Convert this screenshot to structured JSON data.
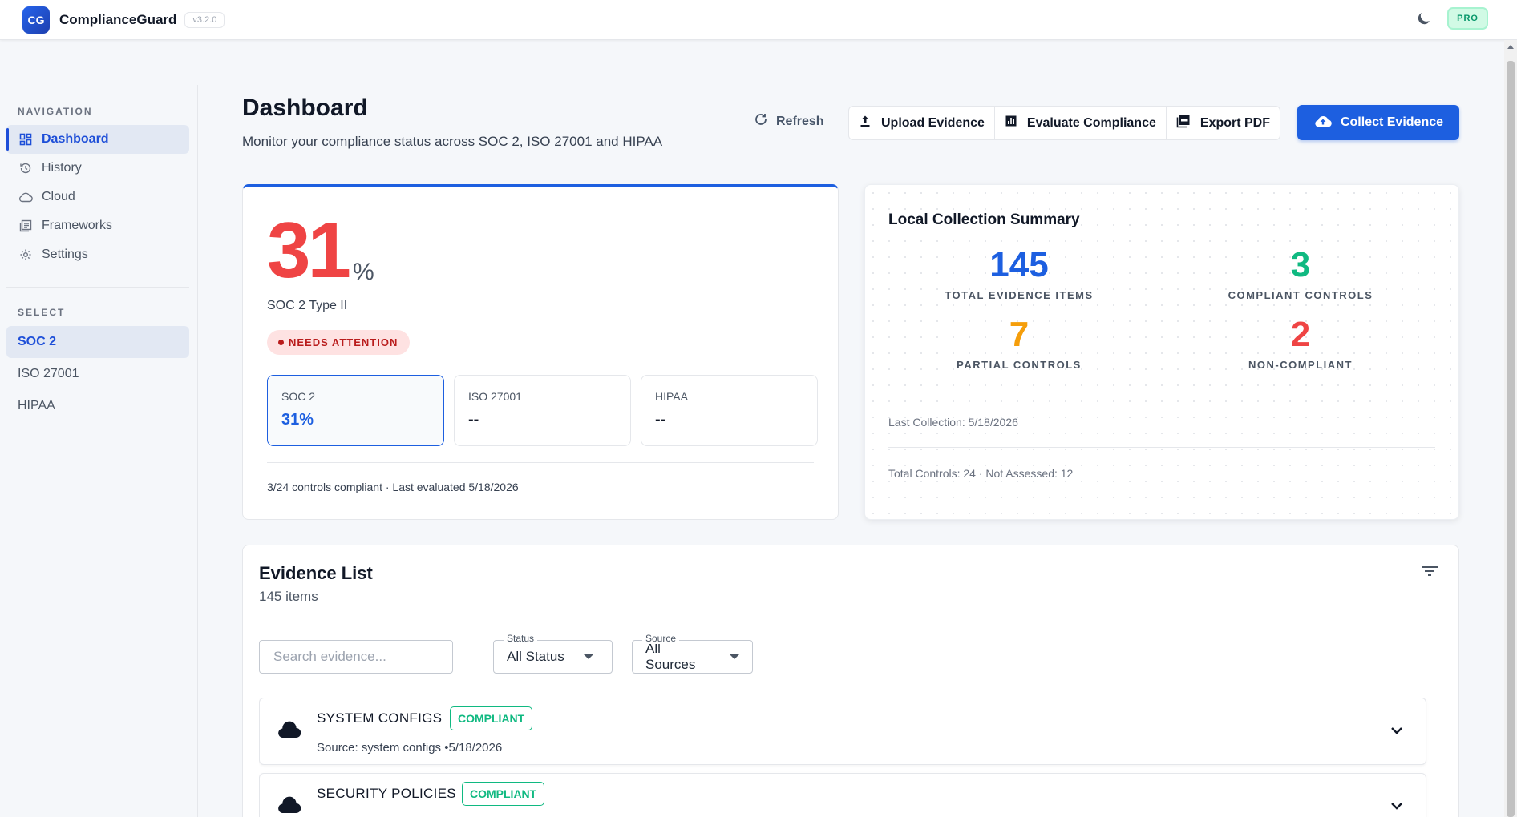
{
  "app": {
    "logo": "CG",
    "name": "ComplianceGuard",
    "version": "v3.2.0",
    "plan": "PRO",
    "theme_icon": "moon-icon"
  },
  "sidebar": {
    "nav_heading": "NAVIGATION",
    "nav_items": [
      {
        "label": "Dashboard",
        "icon": "grid-icon",
        "active": true
      },
      {
        "label": "History",
        "icon": "history-icon"
      },
      {
        "label": "Cloud",
        "icon": "cloud-icon"
      },
      {
        "label": "Frameworks",
        "icon": "frameworks-icon"
      },
      {
        "label": "Settings",
        "icon": "gear-icon"
      }
    ],
    "select_heading": "SELECT",
    "select_items": [
      {
        "label": "SOC 2",
        "active": true
      },
      {
        "label": "ISO 27001"
      },
      {
        "label": "HIPAA"
      }
    ]
  },
  "header": {
    "title": "Dashboard",
    "subtitle": "Monitor your compliance status across SOC 2, ISO 27001 and HIPAA",
    "refresh_label": "Refresh",
    "upload_label": "Upload Evidence",
    "evaluate_label": "Evaluate Compliance",
    "export_label": "Export PDF",
    "collect_label": "Collect Evidence"
  },
  "score": {
    "value": "31",
    "unit": "%",
    "framework": "SOC 2 Type II",
    "status": "NEEDS ATTENTION",
    "tabs": [
      {
        "name": "SOC 2",
        "value": "31%"
      },
      {
        "name": "ISO 27001",
        "value": "--"
      },
      {
        "name": "HIPAA",
        "value": "--"
      }
    ],
    "footer": "3/24 controls compliant · Last evaluated 5/18/2026"
  },
  "summary": {
    "title": "Local Collection Summary",
    "stats": [
      {
        "value": "145",
        "label": "TOTAL EVIDENCE ITEMS",
        "color": "#1d5fe0"
      },
      {
        "value": "3",
        "label": "COMPLIANT CONTROLS",
        "color": "#10b981"
      },
      {
        "value": "7",
        "label": "PARTIAL CONTROLS",
        "color": "#f59e0b"
      },
      {
        "value": "2",
        "label": "NON-COMPLIANT",
        "color": "#ef4444"
      }
    ],
    "last_collection": "Last Collection: 5/18/2026",
    "totals": "Total Controls: 24 · Not Assessed: 12"
  },
  "evidence": {
    "title": "Evidence List",
    "count": "145 items",
    "search_placeholder": "Search evidence...",
    "status_label": "Status",
    "status_value": "All Status",
    "source_label": "Source",
    "source_value": "All Sources",
    "items": [
      {
        "name": "SYSTEM CONFIGS",
        "status": "COMPLIANT",
        "source": "Source: system configs •5/18/2026"
      },
      {
        "name": "SECURITY POLICIES",
        "status": "COMPLIANT",
        "source": ""
      }
    ]
  }
}
